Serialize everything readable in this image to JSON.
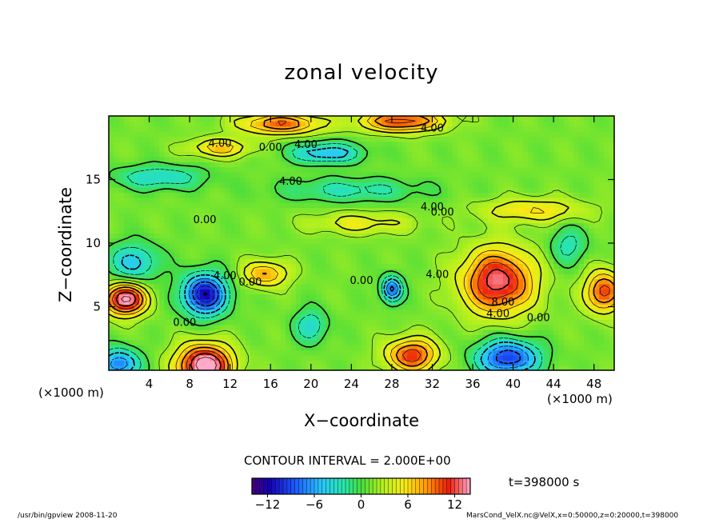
{
  "chart_data": {
    "type": "heatmap",
    "title": "zonal velocity",
    "xlabel": "X−coordinate",
    "ylabel": "Z−coordinate",
    "x_unit": "(×1000 m)",
    "xlim": [
      0,
      50
    ],
    "ylim": [
      0,
      20
    ],
    "x_ticks": [
      4,
      8,
      12,
      16,
      20,
      24,
      28,
      32,
      36,
      40,
      44,
      48
    ],
    "y_ticks": [
      5,
      10,
      15
    ],
    "contour_interval_label": "CONTOUR INTERVAL = 2.000E+00",
    "time_label": "t=398000 s",
    "colorbar": {
      "min": -14,
      "max": 14,
      "ticks": [
        -12,
        -6,
        0,
        6,
        12
      ]
    },
    "contour_labels": [
      {
        "text": "4.00",
        "x": 11.0,
        "y": 17.8
      },
      {
        "text": "0.00",
        "x": 16.0,
        "y": 17.5
      },
      {
        "text": "4.00",
        "x": 19.5,
        "y": 17.7
      },
      {
        "text": "4.00",
        "x": 32.0,
        "y": 19.0
      },
      {
        "text": "4.00",
        "x": 18.0,
        "y": 14.8
      },
      {
        "text": "4.00",
        "x": 32.0,
        "y": 12.8
      },
      {
        "text": "0.00",
        "x": 33.0,
        "y": 12.4
      },
      {
        "text": "0.00",
        "x": 9.5,
        "y": 11.8
      },
      {
        "text": "4.00",
        "x": 11.5,
        "y": 7.4
      },
      {
        "text": "0.00",
        "x": 14.0,
        "y": 6.9
      },
      {
        "text": "0.00",
        "x": 7.5,
        "y": 3.7
      },
      {
        "text": "0.00",
        "x": 25.0,
        "y": 7.0
      },
      {
        "text": "4.00",
        "x": 32.5,
        "y": 7.5
      },
      {
        "text": "8.00",
        "x": 39.0,
        "y": 5.3
      },
      {
        "text": "4.00",
        "x": 38.5,
        "y": 4.4
      },
      {
        "text": "0.00",
        "x": 42.5,
        "y": 4.1
      }
    ],
    "features": [
      {
        "x": 1.6,
        "z": 5.6,
        "amp": 14,
        "sx": 2.0,
        "sz": 1.2
      },
      {
        "x": 9.5,
        "z": 6.0,
        "amp": -13,
        "sx": 2.2,
        "sz": 1.6
      },
      {
        "x": 9.5,
        "z": 0.4,
        "amp": 15,
        "sx": 2.6,
        "sz": 1.6
      },
      {
        "x": 15.5,
        "z": 7.6,
        "amp": 7,
        "sx": 2.2,
        "sz": 1.0
      },
      {
        "x": 20.0,
        "z": 3.5,
        "amp": -5,
        "sx": 1.6,
        "sz": 1.3
      },
      {
        "x": 28.0,
        "z": 6.4,
        "amp": -10,
        "sx": 1.0,
        "sz": 1.0
      },
      {
        "x": 30.0,
        "z": 1.2,
        "amp": 10,
        "sx": 2.5,
        "sz": 1.3
      },
      {
        "x": 38.5,
        "z": 7.0,
        "amp": 12,
        "sx": 3.5,
        "sz": 2.5
      },
      {
        "x": 49.0,
        "z": 6.2,
        "amp": 10,
        "sx": 1.8,
        "sz": 1.6
      },
      {
        "x": 39.5,
        "z": 1.0,
        "amp": -11,
        "sx": 3.0,
        "sz": 1.4
      },
      {
        "x": 1.0,
        "z": 0.5,
        "amp": -9,
        "sx": 2.0,
        "sz": 1.2
      },
      {
        "x": 2.5,
        "z": 8.5,
        "amp": -6,
        "sx": 2.5,
        "sz": 1.5
      },
      {
        "x": 17.0,
        "z": 19.4,
        "amp": 9,
        "sx": 4.0,
        "sz": 0.8
      },
      {
        "x": 29.0,
        "z": 19.6,
        "amp": 10,
        "sx": 4.0,
        "sz": 0.8
      },
      {
        "x": 11.0,
        "z": 17.5,
        "amp": 6,
        "sx": 3.0,
        "sz": 0.7
      },
      {
        "x": 21.5,
        "z": 17.1,
        "amp": -7,
        "sx": 3.5,
        "sz": 0.8
      },
      {
        "x": 5.0,
        "z": 15.2,
        "amp": -5,
        "sx": 4.5,
        "sz": 0.9
      },
      {
        "x": 24.0,
        "z": 14.2,
        "amp": -4,
        "sx": 7.0,
        "sz": 0.9
      },
      {
        "x": 42.0,
        "z": 12.6,
        "amp": 5,
        "sx": 5.0,
        "sz": 0.9
      },
      {
        "x": 25.0,
        "z": 11.6,
        "amp": 4,
        "sx": 5.0,
        "sz": 0.8
      },
      {
        "x": 45.5,
        "z": 9.8,
        "amp": -4,
        "sx": 1.8,
        "sz": 1.5
      }
    ]
  },
  "footer": {
    "left": "/usr/bin/gpview   2008-11-20",
    "right": "MarsCond_VelX.nc@VelX,x=0:50000,z=0:20000,t=398000"
  }
}
